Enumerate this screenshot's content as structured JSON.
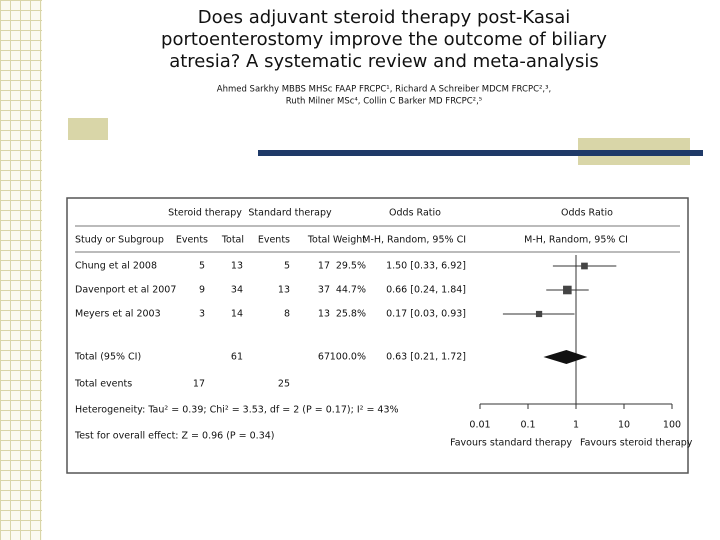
{
  "header": {
    "title_lines": [
      "Does adjuvant steroid therapy post-Kasai",
      "portoenterostomy improve the outcome of biliary",
      "atresia? A systematic review and meta-analysis"
    ],
    "author_lines": [
      "Ahmed Sarkhy MBBS MHSc FAAP FRCPC¹, Richard A Schreiber MDCM FRCPC²,³,",
      "Ruth Milner MSc⁴, Collin C Barker MD FRCPC²,⁵"
    ]
  },
  "figure": {
    "group_headers": [
      "Steroid therapy",
      "Standard therapy",
      "Odds Ratio",
      "Odds Ratio"
    ],
    "column_headers": [
      "Study or Subgroup",
      "Events",
      "Total",
      "Events",
      "Total",
      "Weight",
      "M-H, Random, 95% CI",
      "M-H, Random, 95% CI"
    ],
    "studies": [
      {
        "study": "Chung et al 2008",
        "steroid_events": 5,
        "steroid_total": 13,
        "standard_events": 5,
        "standard_total": 17,
        "weight": 29.5,
        "weight_label": "29.5%",
        "or": 1.5,
        "lo": 0.33,
        "hi": 6.92,
        "ci_label": "1.50 [0.33, 6.92]"
      },
      {
        "study": "Davenport et al 2007",
        "steroid_events": 9,
        "steroid_total": 34,
        "standard_events": 13,
        "standard_total": 37,
        "weight": 44.7,
        "weight_label": "44.7%",
        "or": 0.66,
        "lo": 0.24,
        "hi": 1.84,
        "ci_label": "0.66 [0.24, 1.84]"
      },
      {
        "study": "Meyers et al 2003",
        "steroid_events": 3,
        "steroid_total": 14,
        "standard_events": 8,
        "standard_total": 13,
        "weight": 25.8,
        "weight_label": "25.8%",
        "or": 0.17,
        "lo": 0.03,
        "hi": 0.93,
        "ci_label": "0.17 [0.03, 0.93]"
      }
    ],
    "total": {
      "study": "Total (95% CI)",
      "steroid_total": 61,
      "standard_total": 67,
      "weight_label": "100.0%",
      "or": 0.63,
      "lo": 0.21,
      "hi": 1.72,
      "ci_label": "0.63 [0.21, 1.72]"
    },
    "total_events": {
      "label": "Total events",
      "steroid_events": 17,
      "standard_events": 25
    },
    "heterogeneity": "Heterogeneity: Tau² = 0.39; Chi² = 3.53, df = 2 (P = 0.17); I² = 43%",
    "overall_effect": "Test for overall effect: Z = 0.96 (P = 0.34)",
    "axis_ticks": [
      0.01,
      0.1,
      1,
      10,
      100
    ],
    "favours_left": "Favours standard therapy",
    "favours_right": "Favours steroid therapy"
  }
}
